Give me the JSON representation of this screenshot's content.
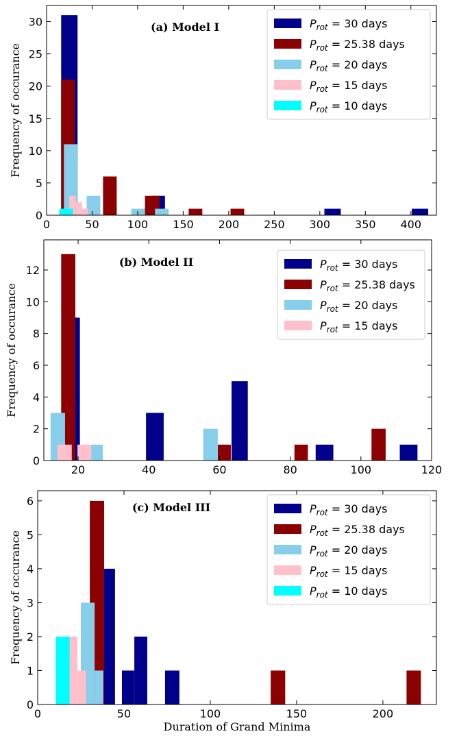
{
  "chart_data": [
    {
      "type": "histogram",
      "title": "(a) Model I",
      "ylabel": "Frequency of occurance",
      "xlim": [
        0,
        428
      ],
      "xticks": [
        0,
        50,
        100,
        150,
        200,
        250,
        300,
        350,
        400
      ],
      "ylim": [
        0,
        32.5
      ],
      "yticks": [
        0,
        5,
        10,
        15,
        20,
        25,
        30
      ],
      "legend": "upper right",
      "series": [
        {
          "name": "Prot = 30 days",
          "color": "#00008b",
          "bins": [
            16,
            34,
            115,
            130,
            305,
            323,
            401,
            419
          ],
          "values": [
            31,
            0,
            3,
            0,
            1,
            0,
            1
          ]
        },
        {
          "name": "Prot = 25.38 days",
          "color": "#8b0000",
          "bins": [
            16,
            31,
            62,
            77,
            108,
            124,
            156,
            171,
            202,
            217
          ],
          "values": [
            21,
            0,
            6,
            0,
            3,
            0,
            1,
            0,
            1
          ]
        },
        {
          "name": "Prot = 20 days",
          "color": "#87ceeb",
          "bins": [
            19,
            34,
            44,
            59,
            93,
            108,
            119,
            134
          ],
          "values": [
            11,
            0,
            3,
            0,
            1,
            0,
            1
          ]
        },
        {
          "name": "Prot = 15 days",
          "color": "#ffc0cb",
          "bins": [
            25,
            32,
            39,
            46
          ],
          "values": [
            3,
            2,
            1
          ]
        },
        {
          "name": "Prot = 10 days",
          "color": "#00ffff",
          "bins": [
            14,
            29
          ],
          "values": [
            1
          ]
        }
      ]
    },
    {
      "type": "histogram",
      "title": "(b) Model II",
      "ylabel": "Frequency of occurance",
      "xlim": [
        10.3,
        120
      ],
      "xticks": [
        20,
        40,
        60,
        80,
        100,
        120
      ],
      "ylim": [
        0,
        13.9
      ],
      "yticks": [
        0,
        2,
        4,
        6,
        8,
        10,
        12
      ],
      "legend": "upper right",
      "series": [
        {
          "name": "Prot = 30 days",
          "color": "#00008b",
          "bins": [
            17,
            20.5,
            39.2,
            44.2,
            63.4,
            68,
            87.2,
            92.2,
            111,
            116
          ],
          "values": [
            9,
            0,
            3,
            0,
            5,
            0,
            1,
            0,
            1
          ]
        },
        {
          "name": "Prot = 25.38 days",
          "color": "#8b0000",
          "bins": [
            15.2,
            19.2,
            59.5,
            63.2,
            81.2,
            85,
            103,
            107
          ],
          "values": [
            13,
            0,
            1,
            0,
            1,
            0,
            2
          ]
        },
        {
          "name": "Prot = 20 days",
          "color": "#87ceeb",
          "bins": [
            12.2,
            16.3,
            23.7,
            27,
            55.4,
            59.5
          ],
          "values": [
            3,
            0,
            1,
            0,
            2
          ]
        },
        {
          "name": "Prot = 15 days",
          "color": "#ffc0cb",
          "bins": [
            14.1,
            18.2,
            19.8,
            23.7
          ],
          "values": [
            1,
            0,
            1
          ]
        }
      ]
    },
    {
      "type": "histogram",
      "title": "(c) Model III",
      "ylabel": "Frequency of occurance",
      "xlabel": "Duration of Grand Minima",
      "xlim": [
        0,
        231
      ],
      "xticks": [
        0,
        50,
        100,
        150,
        200
      ],
      "ylim": [
        0,
        6.3
      ],
      "yticks": [
        0,
        1,
        2,
        3,
        4,
        5,
        6
      ],
      "legend": "upper right",
      "series": [
        {
          "name": "Prot = 30 days",
          "color": "#00008b",
          "bins": [
            38,
            44.8,
            48.8,
            56,
            63.5,
            73.8,
            82.1
          ],
          "values": [
            4,
            0,
            1,
            2,
            0,
            1
          ]
        },
        {
          "name": "Prot = 25.38 days",
          "color": "#8b0000",
          "bins": [
            30.2,
            38.5,
            135,
            143.4,
            213.7,
            222
          ],
          "values": [
            6,
            0,
            1,
            0,
            1
          ]
        },
        {
          "name": "Prot = 20 days",
          "color": "#87ceeb",
          "bins": [
            25,
            33,
            38
          ],
          "values": [
            3,
            1
          ]
        },
        {
          "name": "Prot = 15 days",
          "color": "#ffc0cb",
          "bins": [
            18,
            23,
            28
          ],
          "values": [
            2,
            1
          ]
        },
        {
          "name": "Prot = 10 days",
          "color": "#00ffff",
          "bins": [
            10.5,
            18.5
          ],
          "values": [
            2
          ]
        }
      ]
    }
  ]
}
